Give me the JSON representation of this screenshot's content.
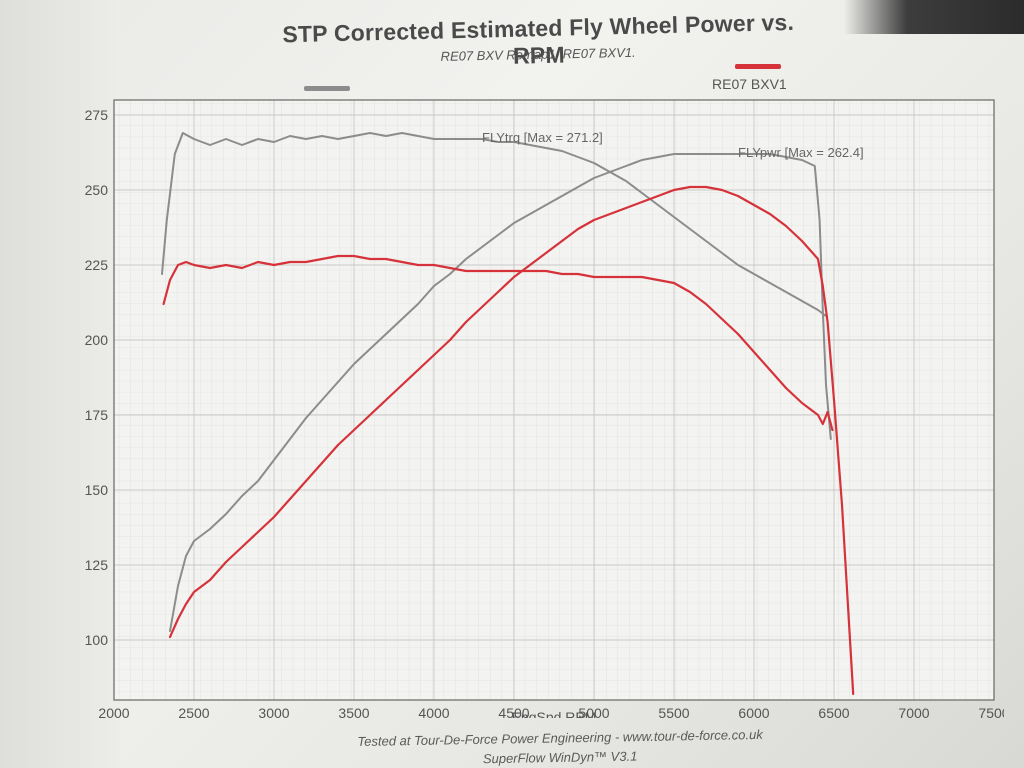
{
  "chart_data": {
    "type": "line",
    "title": "STP Corrected Estimated Fly Wheel Power vs. RPM",
    "subtitle": "RE07 BXV Remap1, RE07 BXV1.",
    "xlabel": "EngSpd RPM",
    "ylabel": "",
    "xlim": [
      2000,
      7500
    ],
    "ylim": [
      80,
      280
    ],
    "x_ticks": [
      "2000",
      "2500",
      "3000",
      "3500",
      "4000",
      "4500",
      "5000",
      "5500",
      "6000",
      "6500",
      "7000",
      "7500"
    ],
    "y_ticks": [
      "100",
      "125",
      "150",
      "175",
      "200",
      "225",
      "250",
      "275"
    ],
    "grid": true,
    "legend_position": "top",
    "legend": [
      {
        "name": "RE07 BXV Remap1",
        "color": "#8c8c8c"
      },
      {
        "name": "RE07 BXV1",
        "color": "#d6323a"
      }
    ],
    "annotations": [
      {
        "text": "FLYtrq [Max = 271.2]",
        "x": 4300,
        "y": 266
      },
      {
        "text": "FLYpwr [Max = 262.4]",
        "x": 5900,
        "y": 261
      }
    ],
    "series": [
      {
        "name": "RE07 BXV Remap1 FLYtrq",
        "color": "#8c8c8c",
        "x": [
          2300,
          2330,
          2380,
          2430,
          2500,
          2600,
          2700,
          2800,
          2900,
          3000,
          3100,
          3200,
          3300,
          3400,
          3500,
          3600,
          3700,
          3800,
          3900,
          4000,
          4100,
          4200,
          4300,
          4400,
          4500,
          4600,
          4700,
          4800,
          4900,
          5000,
          5100,
          5200,
          5300,
          5400,
          5500,
          5600,
          5700,
          5800,
          5900,
          6000,
          6100,
          6200,
          6300,
          6400,
          6450
        ],
        "values": [
          222,
          240,
          262,
          269,
          267,
          265,
          267,
          265,
          267,
          266,
          268,
          267,
          268,
          267,
          268,
          269,
          268,
          269,
          268,
          267,
          267,
          267,
          267,
          266,
          266,
          265,
          264,
          263,
          261,
          259,
          256,
          253,
          249,
          245,
          241,
          237,
          233,
          229,
          225,
          222,
          219,
          216,
          213,
          210,
          208
        ]
      },
      {
        "name": "RE07 BXV Remap1 FLYpwr",
        "color": "#8c8c8c",
        "x": [
          2350,
          2400,
          2450,
          2500,
          2600,
          2700,
          2800,
          2900,
          3000,
          3100,
          3200,
          3300,
          3400,
          3500,
          3600,
          3700,
          3800,
          3900,
          4000,
          4100,
          4200,
          4300,
          4400,
          4500,
          4600,
          4700,
          4800,
          4900,
          5000,
          5100,
          5200,
          5300,
          5400,
          5500,
          5600,
          5700,
          5800,
          5900,
          6000,
          6100,
          6200,
          6300,
          6380,
          6410,
          6430,
          6450,
          6480
        ],
        "values": [
          103,
          118,
          128,
          133,
          137,
          142,
          148,
          153,
          160,
          167,
          174,
          180,
          186,
          192,
          197,
          202,
          207,
          212,
          218,
          222,
          227,
          231,
          235,
          239,
          242,
          245,
          248,
          251,
          254,
          256,
          258,
          260,
          261,
          262,
          262,
          262,
          262,
          262,
          262,
          262,
          261,
          260,
          258,
          240,
          210,
          185,
          167
        ]
      },
      {
        "name": "RE07 BXV1 FLYtrq",
        "color": "#d6323a",
        "x": [
          2310,
          2350,
          2400,
          2450,
          2500,
          2600,
          2700,
          2800,
          2900,
          3000,
          3100,
          3200,
          3300,
          3400,
          3500,
          3600,
          3700,
          3800,
          3900,
          4000,
          4100,
          4200,
          4300,
          4400,
          4500,
          4600,
          4700,
          4800,
          4900,
          5000,
          5100,
          5200,
          5300,
          5400,
          5500,
          5600,
          5700,
          5800,
          5900,
          6000,
          6100,
          6200,
          6300,
          6400,
          6430,
          6460,
          6490
        ],
        "values": [
          212,
          220,
          225,
          226,
          225,
          224,
          225,
          224,
          226,
          225,
          226,
          226,
          227,
          228,
          228,
          227,
          227,
          226,
          225,
          225,
          224,
          223,
          223,
          223,
          223,
          223,
          223,
          222,
          222,
          221,
          221,
          221,
          221,
          220,
          219,
          216,
          212,
          207,
          202,
          196,
          190,
          184,
          179,
          175,
          172,
          176,
          170
        ]
      },
      {
        "name": "RE07 BXV1 FLYpwr",
        "color": "#d6323a",
        "x": [
          2350,
          2400,
          2450,
          2500,
          2600,
          2700,
          2800,
          2900,
          3000,
          3100,
          3200,
          3300,
          3400,
          3500,
          3600,
          3700,
          3800,
          3900,
          4000,
          4100,
          4200,
          4300,
          4400,
          4500,
          4600,
          4700,
          4800,
          4900,
          5000,
          5100,
          5200,
          5300,
          5400,
          5500,
          5600,
          5700,
          5800,
          5900,
          6000,
          6100,
          6200,
          6300,
          6400,
          6430,
          6460,
          6500,
          6550,
          6600,
          6620
        ],
        "values": [
          101,
          107,
          112,
          116,
          120,
          126,
          131,
          136,
          141,
          147,
          153,
          159,
          165,
          170,
          175,
          180,
          185,
          190,
          195,
          200,
          206,
          211,
          216,
          221,
          225,
          229,
          233,
          237,
          240,
          242,
          244,
          246,
          248,
          250,
          251,
          251,
          250,
          248,
          245,
          242,
          238,
          233,
          227,
          218,
          206,
          180,
          145,
          100,
          82
        ]
      }
    ]
  },
  "footer": {
    "line1": "Tested at Tour-De-Force Power Engineering - www.tour-de-force.co.uk",
    "line2": "SuperFlow WinDyn™ V3.1"
  }
}
